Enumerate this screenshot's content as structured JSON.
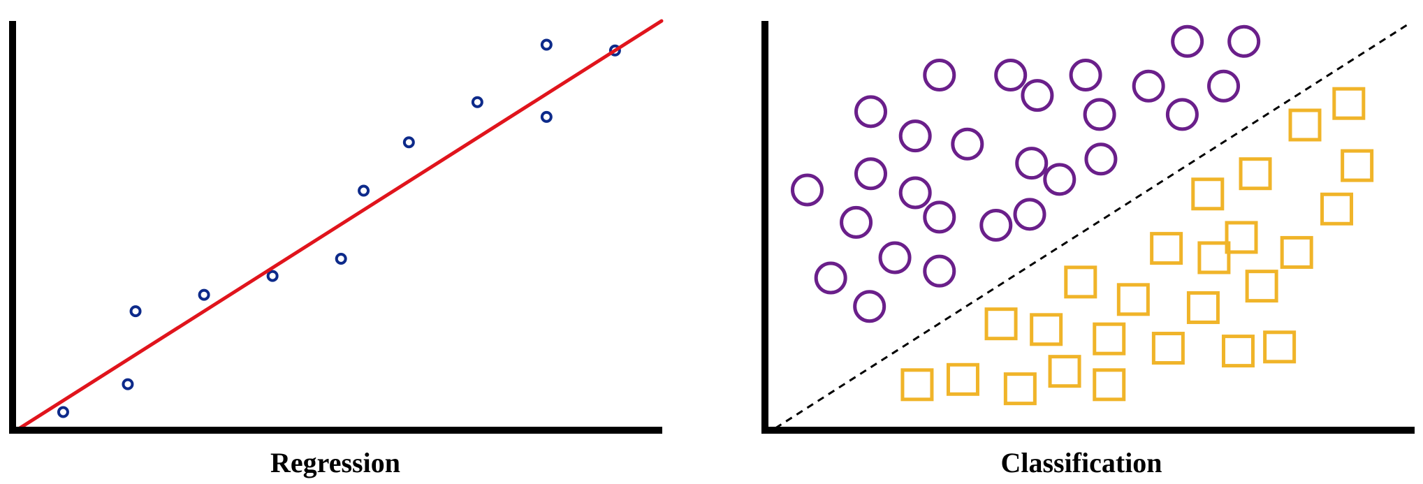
{
  "panels": {
    "regression": {
      "caption": "Regression",
      "point_color": "#0d2a8a",
      "line_color": "#e0141c",
      "axis_color": "#000000",
      "fit_line": {
        "x": [
          0,
          100
        ],
        "y": [
          0,
          100
        ]
      },
      "points": [
        {
          "x": 7.4,
          "y": 4.6
        },
        {
          "x": 17.4,
          "y": 11.4
        },
        {
          "x": 18.6,
          "y": 29.2
        },
        {
          "x": 29.2,
          "y": 33.2
        },
        {
          "x": 39.8,
          "y": 37.8
        },
        {
          "x": 50.4,
          "y": 42.0
        },
        {
          "x": 53.9,
          "y": 58.6
        },
        {
          "x": 60.9,
          "y": 70.4
        },
        {
          "x": 71.5,
          "y": 80.2
        },
        {
          "x": 82.2,
          "y": 76.6
        },
        {
          "x": 82.2,
          "y": 94.2
        },
        {
          "x": 92.8,
          "y": 92.8
        }
      ]
    },
    "classification": {
      "caption": "Classification",
      "circle_color": "#6a1f8a",
      "square_color": "#f0b429",
      "boundary_color": "#000000",
      "axis_color": "#000000",
      "boundary": {
        "x": [
          0,
          100
        ],
        "y": [
          0,
          100
        ]
      },
      "circles": [
        {
          "x": 5.0,
          "y": 58.7
        },
        {
          "x": 8.7,
          "y": 37.0
        },
        {
          "x": 12.7,
          "y": 50.7
        },
        {
          "x": 14.8,
          "y": 30.0
        },
        {
          "x": 15.0,
          "y": 62.7
        },
        {
          "x": 15.0,
          "y": 78.0
        },
        {
          "x": 18.8,
          "y": 42.0
        },
        {
          "x": 22.0,
          "y": 72.0
        },
        {
          "x": 22.0,
          "y": 58.0
        },
        {
          "x": 25.8,
          "y": 38.7
        },
        {
          "x": 25.8,
          "y": 52.0
        },
        {
          "x": 25.8,
          "y": 87.0
        },
        {
          "x": 30.2,
          "y": 70.0
        },
        {
          "x": 34.7,
          "y": 50.0
        },
        {
          "x": 37.0,
          "y": 87.0
        },
        {
          "x": 41.2,
          "y": 82.0
        },
        {
          "x": 40.3,
          "y": 65.3
        },
        {
          "x": 40.0,
          "y": 52.7
        },
        {
          "x": 44.7,
          "y": 61.3
        },
        {
          "x": 48.8,
          "y": 87.0
        },
        {
          "x": 51.0,
          "y": 77.3
        },
        {
          "x": 51.2,
          "y": 66.3
        },
        {
          "x": 58.7,
          "y": 84.3
        },
        {
          "x": 64.8,
          "y": 95.3
        },
        {
          "x": 64.0,
          "y": 77.3
        },
        {
          "x": 70.5,
          "y": 84.3
        },
        {
          "x": 73.7,
          "y": 95.3
        }
      ],
      "squares": [
        {
          "x": 22.3,
          "y": 10.7
        },
        {
          "x": 29.5,
          "y": 12.0
        },
        {
          "x": 38.5,
          "y": 9.7
        },
        {
          "x": 45.5,
          "y": 14.0
        },
        {
          "x": 52.5,
          "y": 10.7
        },
        {
          "x": 35.5,
          "y": 25.7
        },
        {
          "x": 42.6,
          "y": 24.3
        },
        {
          "x": 48.0,
          "y": 36.0
        },
        {
          "x": 52.5,
          "y": 22.0
        },
        {
          "x": 56.3,
          "y": 31.7
        },
        {
          "x": 61.5,
          "y": 44.3
        },
        {
          "x": 61.8,
          "y": 19.7
        },
        {
          "x": 69.0,
          "y": 42.0
        },
        {
          "x": 67.3,
          "y": 29.7
        },
        {
          "x": 68.0,
          "y": 57.7
        },
        {
          "x": 73.3,
          "y": 47.0
        },
        {
          "x": 75.5,
          "y": 62.7
        },
        {
          "x": 72.8,
          "y": 19.0
        },
        {
          "x": 76.5,
          "y": 35.0
        },
        {
          "x": 79.3,
          "y": 20.0
        },
        {
          "x": 82.0,
          "y": 43.3
        },
        {
          "x": 83.3,
          "y": 74.7
        },
        {
          "x": 88.3,
          "y": 54.0
        },
        {
          "x": 90.2,
          "y": 80.0
        },
        {
          "x": 91.5,
          "y": 64.7
        }
      ]
    }
  }
}
